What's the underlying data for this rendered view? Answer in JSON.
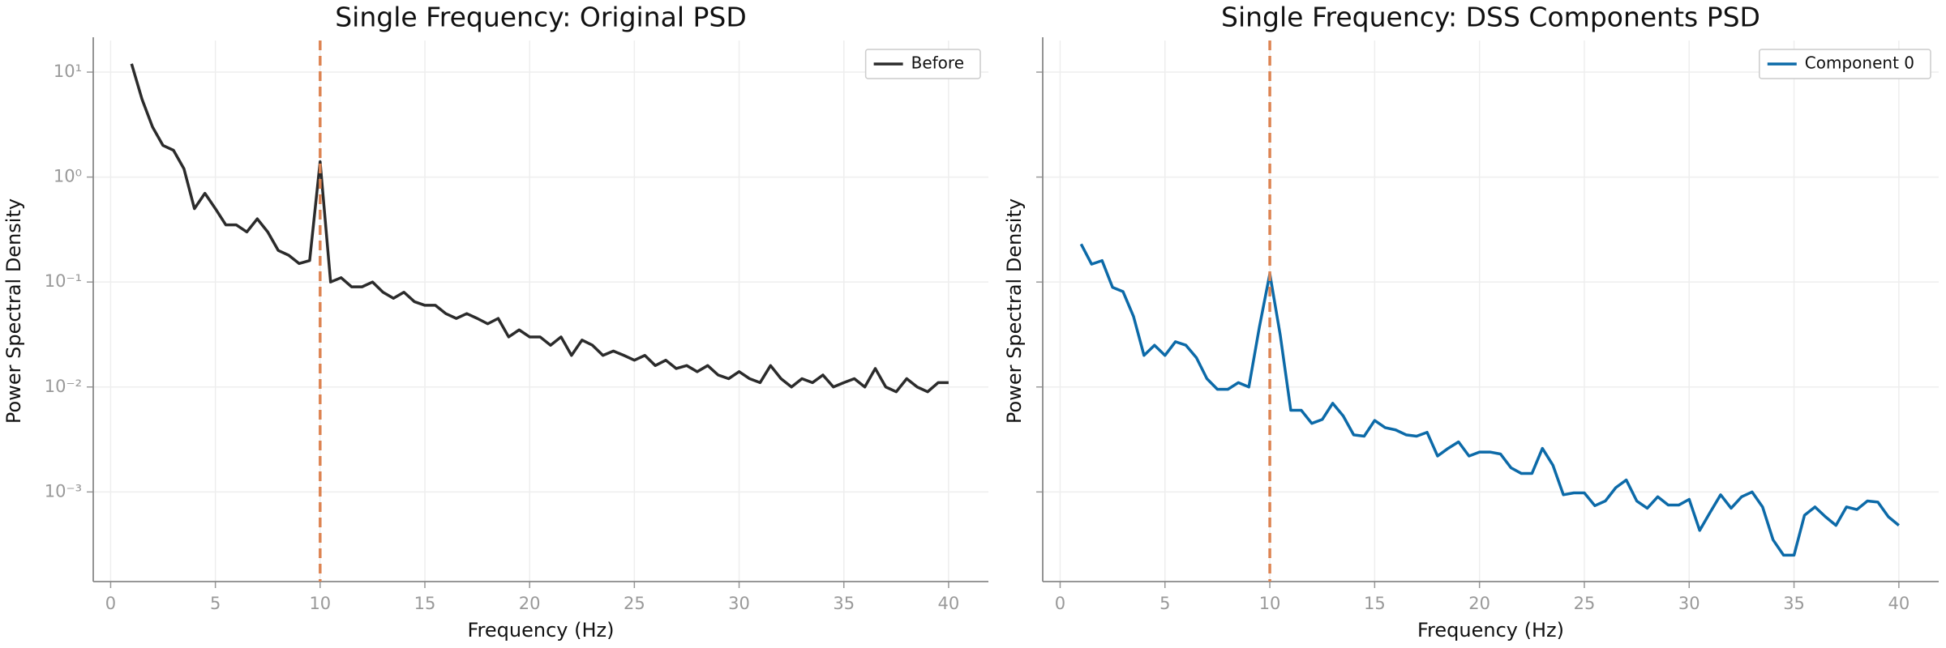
{
  "chart_data": [
    {
      "type": "line",
      "title": "Single Frequency: Original PSD",
      "xlabel": "Frequency (Hz)",
      "ylabel": "Power Spectral Density",
      "x": [
        1,
        1.5,
        2,
        2.5,
        3,
        3.5,
        4,
        4.5,
        5,
        5.5,
        6,
        6.5,
        7,
        7.5,
        8,
        8.5,
        9,
        9.5,
        10,
        10.5,
        11,
        11.5,
        12,
        12.5,
        13,
        13.5,
        14,
        14.5,
        15,
        15.5,
        16,
        16.5,
        17,
        17.5,
        18,
        18.5,
        19,
        19.5,
        20,
        20.5,
        21,
        21.5,
        22,
        22.5,
        23,
        23.5,
        24,
        24.5,
        25,
        25.5,
        26,
        26.5,
        27,
        27.5,
        28,
        28.5,
        29,
        29.5,
        30,
        30.5,
        31,
        31.5,
        32,
        32.5,
        33,
        33.5,
        34,
        34.5,
        35,
        35.5,
        36,
        36.5,
        37,
        37.5,
        38,
        38.5,
        39,
        39.5,
        40
      ],
      "series": [
        {
          "name": "Before",
          "color": "#2b2b2b",
          "values": [
            12,
            5.5,
            3.0,
            2.0,
            1.8,
            1.2,
            0.5,
            0.7,
            0.5,
            0.35,
            0.35,
            0.3,
            0.4,
            0.3,
            0.2,
            0.18,
            0.15,
            0.16,
            1.4,
            0.1,
            0.11,
            0.09,
            0.09,
            0.1,
            0.08,
            0.07,
            0.08,
            0.065,
            0.06,
            0.06,
            0.05,
            0.045,
            0.05,
            0.045,
            0.04,
            0.045,
            0.03,
            0.035,
            0.03,
            0.03,
            0.025,
            0.03,
            0.02,
            0.028,
            0.025,
            0.02,
            0.022,
            0.02,
            0.018,
            0.02,
            0.016,
            0.018,
            0.015,
            0.016,
            0.014,
            0.016,
            0.013,
            0.012,
            0.014,
            0.012,
            0.011,
            0.016,
            0.012,
            0.01,
            0.012,
            0.011,
            0.013,
            0.01,
            0.011,
            0.012,
            0.01,
            0.015,
            0.01,
            0.009,
            0.012,
            0.01,
            0.009,
            0.011,
            0.011
          ]
        }
      ],
      "axvline": {
        "x": 10,
        "color": "#dd8452",
        "style": "dashed"
      },
      "xlim": [
        -0.83,
        41.9
      ],
      "xticks": [
        0,
        5,
        10,
        15,
        20,
        25,
        30,
        35,
        40
      ],
      "yscale": "log",
      "ylim": [
        0.00014,
        20
      ],
      "yticks": [
        {
          "value": 0.001,
          "label": "10⁻³"
        },
        {
          "value": 0.01,
          "label": "10⁻²"
        },
        {
          "value": 0.1,
          "label": "10⁻¹"
        },
        {
          "value": 1,
          "label": "10⁰"
        },
        {
          "value": 10,
          "label": "10¹"
        }
      ],
      "ytick_labels": true,
      "grid": true,
      "legend": "upper right"
    },
    {
      "type": "line",
      "title": "Single Frequency: DSS Components PSD",
      "xlabel": "Frequency (Hz)",
      "ylabel": "Power Spectral Density",
      "x": [
        1,
        1.5,
        2,
        2.5,
        3,
        3.5,
        4,
        4.5,
        5,
        5.5,
        6,
        6.5,
        7,
        7.5,
        8,
        8.5,
        9,
        9.5,
        10,
        10.5,
        11,
        11.5,
        12,
        12.5,
        13,
        13.5,
        14,
        14.5,
        15,
        15.5,
        16,
        16.5,
        17,
        17.5,
        18,
        18.5,
        19,
        19.5,
        20,
        20.5,
        21,
        21.5,
        22,
        22.5,
        23,
        23.5,
        24,
        24.5,
        25,
        25.5,
        26,
        26.5,
        27,
        27.5,
        28,
        28.5,
        29,
        29.5,
        30,
        30.5,
        31,
        31.5,
        32,
        32.5,
        33,
        33.5,
        34,
        34.5,
        35,
        35.5,
        36,
        36.5,
        37,
        37.5,
        38,
        38.5,
        39,
        39.5,
        40
      ],
      "series": [
        {
          "name": "Component 0",
          "color": "#0c6aa8",
          "values": [
            0.23,
            0.148,
            0.16,
            0.089,
            0.081,
            0.047,
            0.02,
            0.025,
            0.02,
            0.027,
            0.025,
            0.019,
            0.012,
            0.0095,
            0.0095,
            0.011,
            0.01,
            0.037,
            0.12,
            0.031,
            0.006,
            0.006,
            0.0045,
            0.0049,
            0.007,
            0.0053,
            0.0035,
            0.0034,
            0.0048,
            0.0041,
            0.0039,
            0.0035,
            0.0034,
            0.0037,
            0.0022,
            0.0026,
            0.003,
            0.0022,
            0.0024,
            0.0024,
            0.0023,
            0.0017,
            0.0015,
            0.0015,
            0.0026,
            0.0018,
            0.00094,
            0.00098,
            0.00098,
            0.00074,
            0.00082,
            0.0011,
            0.0013,
            0.00082,
            0.0007,
            0.0009,
            0.00075,
            0.00075,
            0.00085,
            0.00043,
            0.00064,
            0.00094,
            0.0007,
            0.0009,
            0.001,
            0.00072,
            0.00035,
            0.00025,
            0.00025,
            0.0006,
            0.00072,
            0.00058,
            0.00048,
            0.00072,
            0.00068,
            0.00082,
            0.0008,
            0.00058,
            0.00048
          ]
        }
      ],
      "axvline": {
        "x": 10,
        "color": "#dd8452",
        "style": "dashed"
      },
      "xlim": [
        -0.83,
        41.9
      ],
      "xticks": [
        0,
        5,
        10,
        15,
        20,
        25,
        30,
        35,
        40
      ],
      "yscale": "log",
      "ylim": [
        0.00014,
        20
      ],
      "yticks": [
        0.001,
        0.01,
        0.1,
        1,
        10
      ],
      "ytick_labels": false,
      "grid": true,
      "legend": "upper right"
    }
  ]
}
